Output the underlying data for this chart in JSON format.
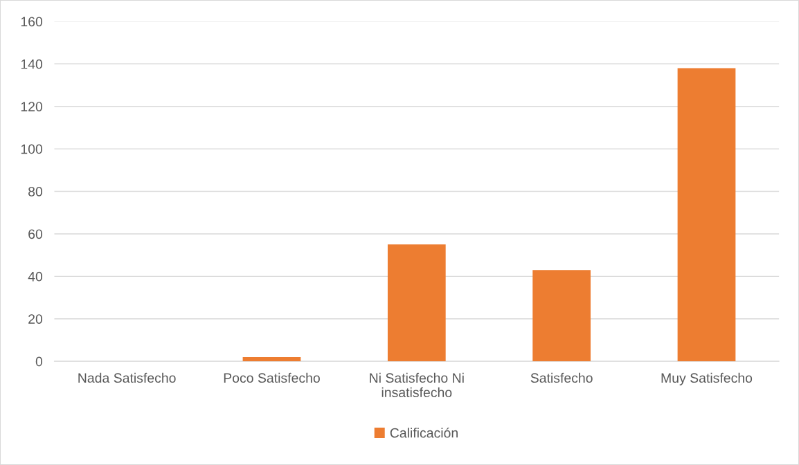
{
  "chart_data": {
    "type": "bar",
    "categories": [
      "Nada Satisfecho",
      "Poco Satisfecho",
      "Ni Satisfecho Ni\ninsatisfecho",
      "Satisfecho",
      "Muy Satisfecho"
    ],
    "series": [
      {
        "name": "Calificación",
        "color": "#ed7d31",
        "values": [
          0,
          2,
          55,
          43,
          138
        ]
      }
    ],
    "ylim": [
      0,
      160
    ],
    "yticks": [
      0,
      20,
      40,
      60,
      80,
      100,
      120,
      140,
      160
    ],
    "grid": "y",
    "legend": "bottom"
  }
}
